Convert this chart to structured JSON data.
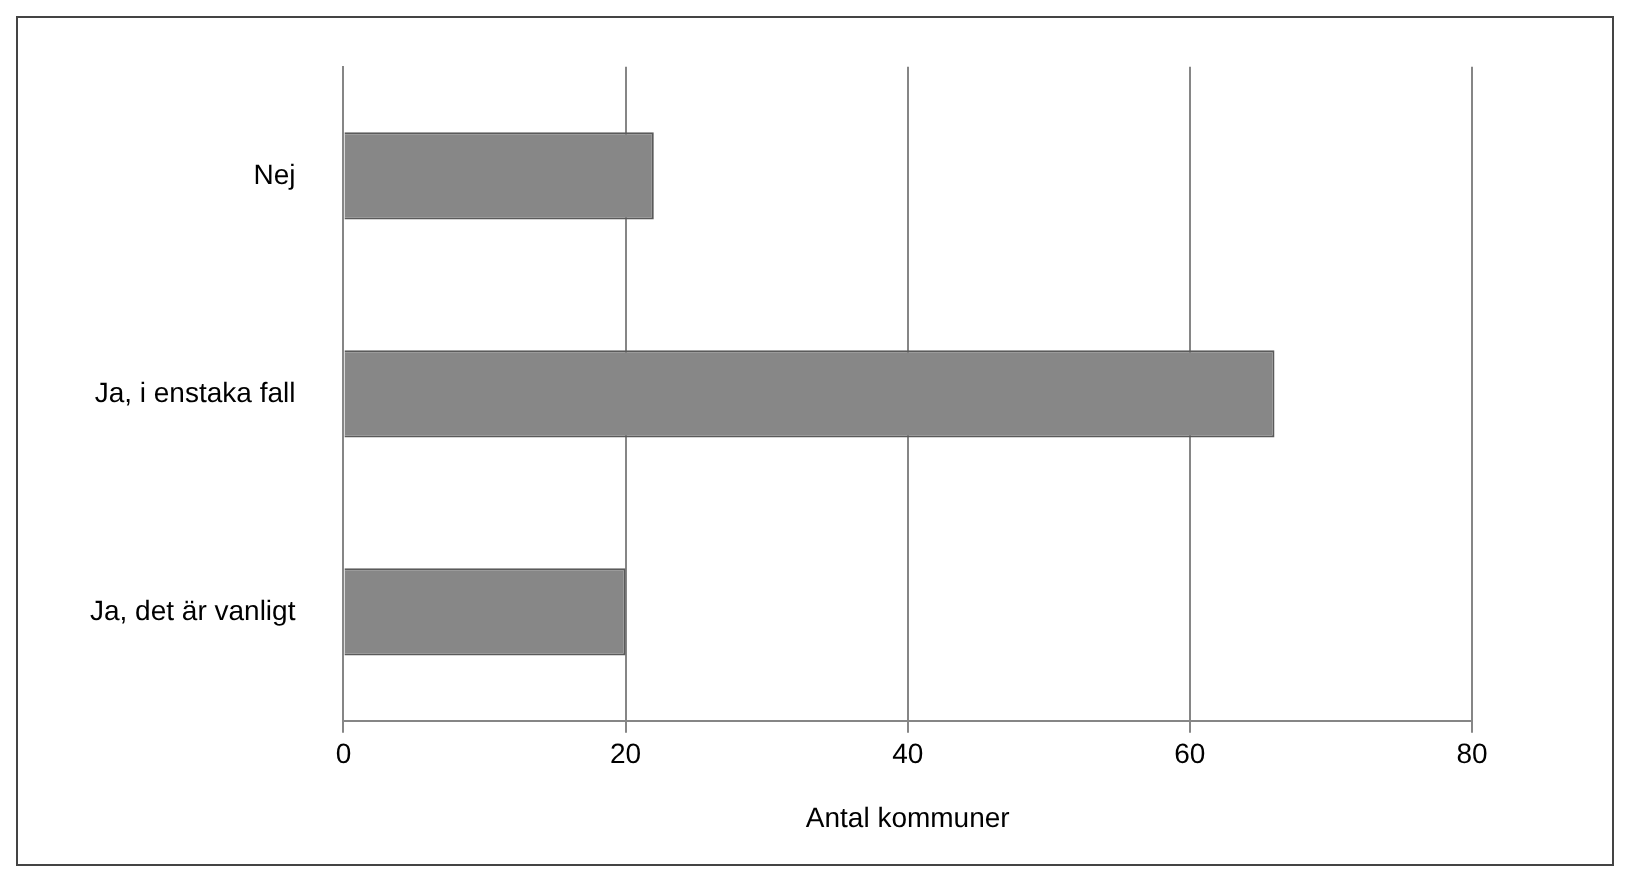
{
  "chart_data": {
    "type": "bar",
    "orientation": "horizontal",
    "xlabel": "Antal kommuner",
    "categories": [
      "Nej",
      "Ja, i enstaka fall",
      "Ja, det är vanligt"
    ],
    "values": [
      22,
      66,
      20
    ],
    "color": "#878787",
    "xlim": [
      0,
      80
    ],
    "xticks": [
      0,
      20,
      40,
      60,
      80
    ],
    "grid": "x"
  }
}
